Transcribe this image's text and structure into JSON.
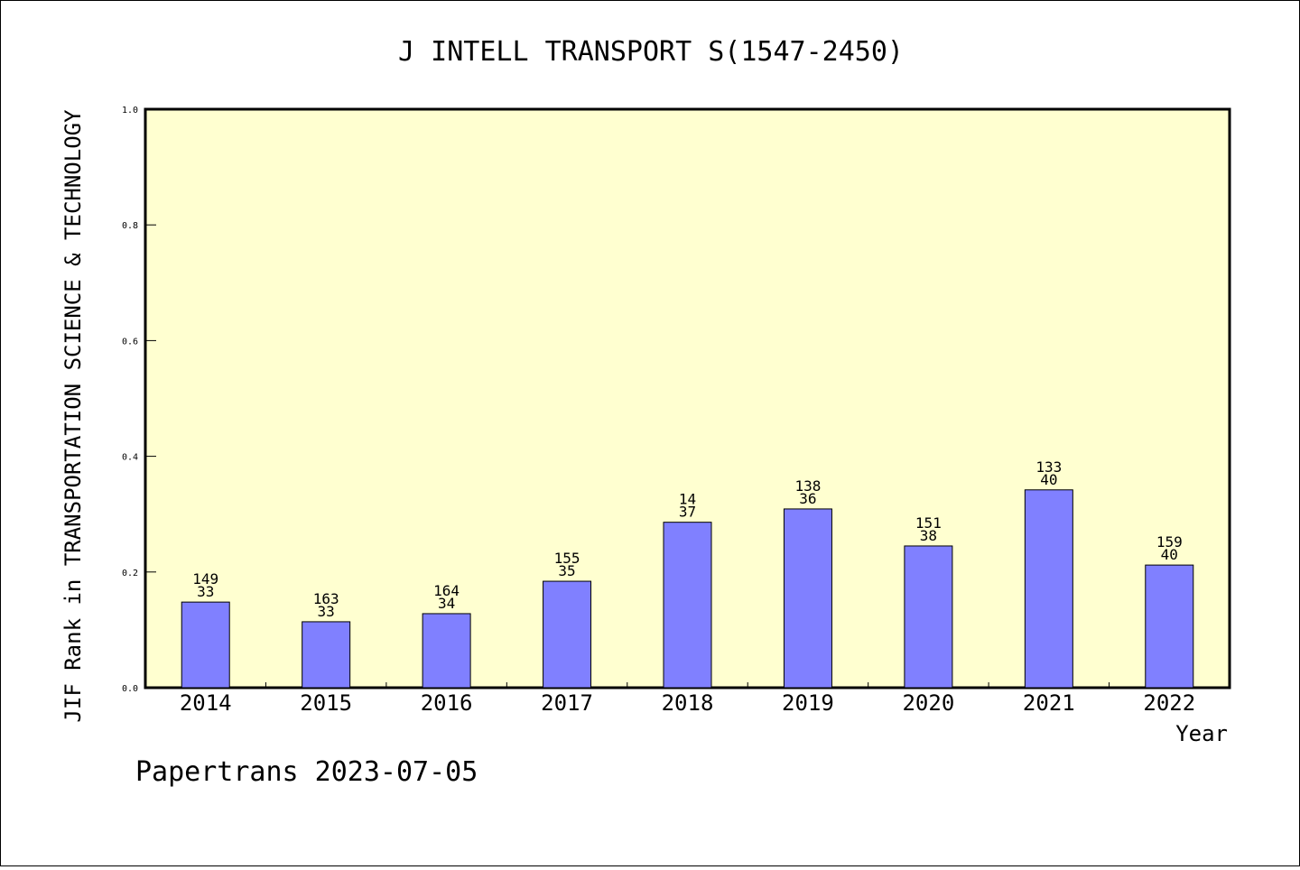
{
  "chart_data": {
    "type": "bar",
    "title": "J INTELL TRANSPORT S(1547-2450)",
    "xlabel": "Year",
    "ylabel": "JIF Rank in TRANSPORTATION SCIENCE & TECHNOLOGY",
    "ylim": [
      0,
      1.0
    ],
    "yticks": [
      "0.0",
      "0.2",
      "0.4",
      "0.6",
      "0.8",
      "1.0"
    ],
    "categories": [
      "2014",
      "2015",
      "2016",
      "2017",
      "2018",
      "2019",
      "2020",
      "2021",
      "2022"
    ],
    "values": [
      0.148,
      0.114,
      0.128,
      0.184,
      0.286,
      0.309,
      0.245,
      0.342,
      0.212
    ],
    "labels_top": [
      "149",
      "163",
      "164",
      "155",
      "14",
      "138",
      "151",
      "133",
      "159"
    ],
    "labels_bottom": [
      "33",
      "33",
      "34",
      "35",
      "37",
      "36",
      "38",
      "40",
      "40"
    ],
    "grid": false,
    "colors": {
      "plot_bg": "#ffffd0",
      "bar": "#8080ff",
      "bar_edge": "#000000"
    }
  },
  "footer": "Papertrans 2023-07-05"
}
